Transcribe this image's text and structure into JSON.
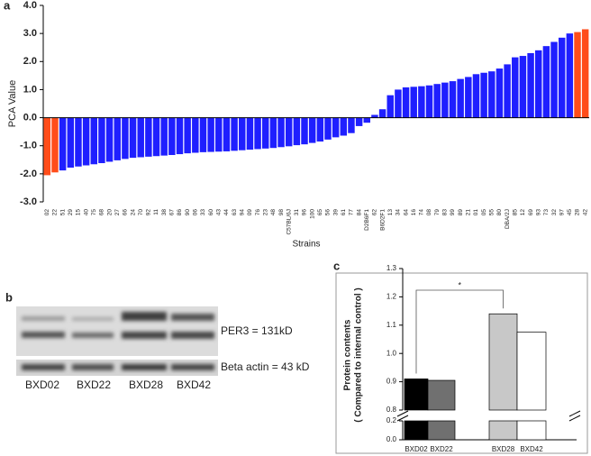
{
  "chart_data": [
    {
      "type": "bar",
      "panel_label": "a",
      "ylabel": "PCA Value",
      "xlabel": "Strains",
      "categories": [
        "02",
        "22",
        "51",
        "29",
        "15",
        "40",
        "75",
        "68",
        "20",
        "27",
        "66",
        "24",
        "70",
        "92",
        "11",
        "38",
        "67",
        "86",
        "90",
        "06",
        "33",
        "60",
        "43",
        "44",
        "63",
        "94",
        "09",
        "76",
        "23",
        "48",
        "98",
        "C57BL/6J",
        "31",
        "96",
        "100",
        "65",
        "56",
        "39",
        "61",
        "77",
        "84",
        "D2B6F1",
        "62",
        "B6D2F1",
        "13",
        "34",
        "64",
        "16",
        "74",
        "08",
        "79",
        "83",
        "99",
        "89",
        "21",
        "01",
        "05",
        "55",
        "80",
        "DBA/2J",
        "85",
        "12",
        "69",
        "93",
        "73",
        "32",
        "97",
        "45",
        "28",
        "42"
      ],
      "values": [
        -2.05,
        -1.95,
        -1.88,
        -1.78,
        -1.74,
        -1.7,
        -1.66,
        -1.62,
        -1.57,
        -1.52,
        -1.47,
        -1.43,
        -1.41,
        -1.39,
        -1.37,
        -1.35,
        -1.33,
        -1.3,
        -1.27,
        -1.25,
        -1.23,
        -1.22,
        -1.21,
        -1.2,
        -1.18,
        -1.16,
        -1.14,
        -1.12,
        -1.1,
        -1.08,
        -1.05,
        -1.02,
        -0.98,
        -0.95,
        -0.9,
        -0.85,
        -0.78,
        -0.7,
        -0.64,
        -0.55,
        -0.3,
        -0.18,
        0.1,
        0.3,
        0.8,
        1.0,
        1.08,
        1.1,
        1.12,
        1.15,
        1.2,
        1.25,
        1.3,
        1.38,
        1.45,
        1.55,
        1.6,
        1.65,
        1.75,
        1.9,
        2.15,
        2.2,
        2.3,
        2.4,
        2.55,
        2.7,
        2.85,
        3.0,
        3.05,
        3.15
      ],
      "colors": [
        "#ff4d1a",
        "#ff4d1a",
        "#1f1fff",
        "#1f1fff",
        "#1f1fff",
        "#1f1fff",
        "#1f1fff",
        "#1f1fff",
        "#1f1fff",
        "#1f1fff",
        "#1f1fff",
        "#1f1fff",
        "#1f1fff",
        "#1f1fff",
        "#1f1fff",
        "#1f1fff",
        "#1f1fff",
        "#1f1fff",
        "#1f1fff",
        "#1f1fff",
        "#1f1fff",
        "#1f1fff",
        "#1f1fff",
        "#1f1fff",
        "#1f1fff",
        "#1f1fff",
        "#1f1fff",
        "#1f1fff",
        "#1f1fff",
        "#1f1fff",
        "#1f1fff",
        "#1f1fff",
        "#1f1fff",
        "#1f1fff",
        "#1f1fff",
        "#1f1fff",
        "#1f1fff",
        "#1f1fff",
        "#1f1fff",
        "#1f1fff",
        "#1f1fff",
        "#1f1fff",
        "#1f1fff",
        "#1f1fff",
        "#1f1fff",
        "#1f1fff",
        "#1f1fff",
        "#1f1fff",
        "#1f1fff",
        "#1f1fff",
        "#1f1fff",
        "#1f1fff",
        "#1f1fff",
        "#1f1fff",
        "#1f1fff",
        "#1f1fff",
        "#1f1fff",
        "#1f1fff",
        "#1f1fff",
        "#1f1fff",
        "#1f1fff",
        "#1f1fff",
        "#1f1fff",
        "#1f1fff",
        "#1f1fff",
        "#1f1fff",
        "#1f1fff",
        "#1f1fff",
        "#ff4d1a",
        "#ff4d1a"
      ],
      "ylim": [
        -3,
        4
      ],
      "yticks": [
        {
          "value": -3,
          "label": "-3.0"
        },
        {
          "value": -2,
          "label": "-2.0"
        },
        {
          "value": -1,
          "label": "-1.0"
        },
        {
          "value": 0,
          "label": "0.0"
        },
        {
          "value": 1,
          "label": "1.0"
        },
        {
          "value": 2,
          "label": "2.0"
        },
        {
          "value": 3,
          "label": "3.0"
        },
        {
          "value": 4,
          "label": "4.0"
        }
      ]
    },
    {
      "type": "broken-bar",
      "panel_label": "c",
      "ylabel": [
        "Protein contents",
        "( Compared to internal control )"
      ],
      "categories": [
        "BXD02",
        "BXD22",
        "BXD28",
        "BXD42"
      ],
      "values": [
        0.91,
        0.905,
        1.14,
        1.075
      ],
      "colors": [
        "#000000",
        "#707070",
        "#c8c8c8",
        "#ffffff"
      ],
      "ylim": [
        0,
        1.3
      ],
      "ysegments": [
        [
          0,
          0.2
        ],
        [
          0.8,
          1.3
        ]
      ],
      "yticks": [
        {
          "value": 0,
          "label": "0.0"
        },
        {
          "value": 0.2,
          "label": "0.2"
        },
        {
          "value": 0.8,
          "label": "0.8"
        },
        {
          "value": 0.9,
          "label": "0.9"
        },
        {
          "value": 1.0,
          "label": "1.0"
        },
        {
          "value": 1.1,
          "label": "1.1"
        },
        {
          "value": 1.2,
          "label": "1.2"
        },
        {
          "value": 1.3,
          "label": "1.3"
        }
      ],
      "significance": {
        "label": "*",
        "between": [
          0,
          2
        ]
      }
    }
  ],
  "blot": {
    "panel_label": "b",
    "bands": [
      "PER3 = 131kD",
      "Beta actin = 43 kD"
    ],
    "lanes": [
      "BXD02",
      "BXD22",
      "BXD28",
      "BXD42"
    ]
  }
}
